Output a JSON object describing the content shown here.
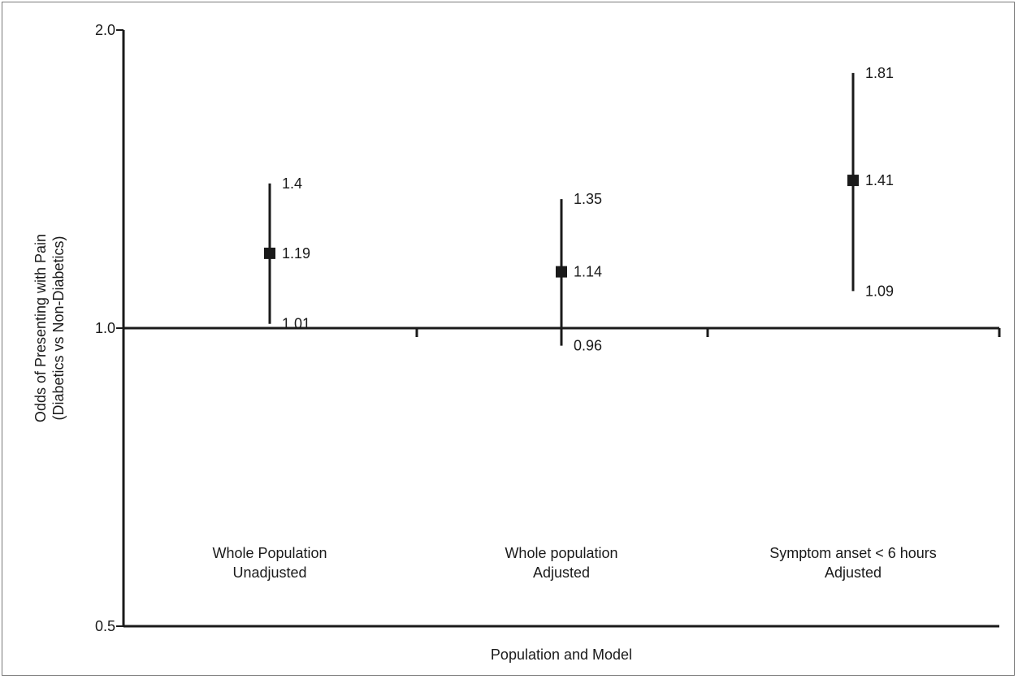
{
  "chart_data": {
    "type": "forest",
    "xlabel": "Population and Model",
    "ylabel": [
      "Odds of Presenting with Pain",
      "(Diabetics vs Non-Diabetics)"
    ],
    "y_scale": "log",
    "ylim": [
      0.5,
      2.0
    ],
    "yticks": [
      {
        "value": 0.5,
        "label": "0.5"
      },
      {
        "value": 1.0,
        "label": "1.0"
      },
      {
        "value": 2.0,
        "label": "2.0"
      }
    ],
    "reference_line": 1.0,
    "categories": [
      [
        "Whole Population",
        "Unadjusted"
      ],
      [
        "Whole population",
        "Adjusted"
      ],
      [
        "Symptom anset < 6 hours",
        "Adjusted"
      ]
    ],
    "points": [
      {
        "estimate": 1.19,
        "lower": 1.01,
        "upper": 1.4,
        "estimate_label": "1.19",
        "lower_label": "1.01",
        "upper_label": "1.4"
      },
      {
        "estimate": 1.14,
        "lower": 0.96,
        "upper": 1.35,
        "estimate_label": "1.14",
        "lower_label": "0.96",
        "upper_label": "1.35"
      },
      {
        "estimate": 1.41,
        "lower": 1.09,
        "upper": 1.81,
        "estimate_label": "1.41",
        "lower_label": "1.09",
        "upper_label": "1.81"
      }
    ],
    "colors": {
      "ink": "#1a1a1a",
      "frame": "#7a7a7a"
    }
  }
}
